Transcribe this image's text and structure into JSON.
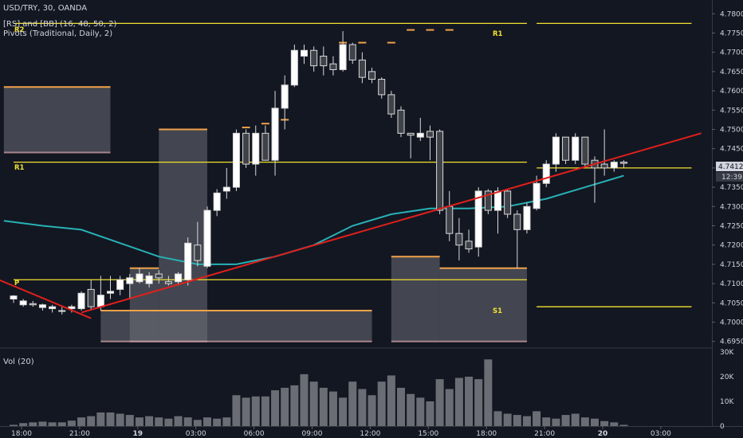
{
  "header": {
    "symbol_line": "USD/TRY, 30, OANDA",
    "indicator_1": "[RS] and [BB] (16, 48, 50, 2)",
    "indicator_2": "Pivots (Traditional, Daily, 2)"
  },
  "volume_panel": {
    "title": "Vol (20)"
  },
  "price_labels": {
    "last": "4.74126",
    "countdown": "12:39"
  },
  "pivot_labels": {
    "r2": "R2",
    "r1_top": "R1",
    "r1": "R1",
    "p": "P",
    "s1": "S1"
  },
  "colors": {
    "background": "#131722",
    "candle": "#d9d9d9",
    "pivot_line": "#f2e12e",
    "trendline": "#e0201c",
    "moving_average": "#27b1b5",
    "band_fill": "#6b6e76",
    "band_top": "#f0a24a",
    "band_bottom": "#c89aa0",
    "volume": "#6a6d73"
  },
  "chart_data": {
    "type": "candlestick",
    "symbol": "USD/TRY",
    "interval": "30",
    "source": "OANDA",
    "price_axis": {
      "ticks": [
        "4.78000",
        "4.77500",
        "4.77000",
        "4.76500",
        "4.76000",
        "4.75500",
        "4.75000",
        "4.74500",
        "4.74000",
        "4.73500",
        "4.73000",
        "4.72500",
        "4.72000",
        "4.71500",
        "4.71000",
        "4.70500",
        "4.70000",
        "4.69500"
      ],
      "range": [
        4.6935,
        4.7815
      ]
    },
    "time_axis": {
      "ticks": [
        {
          "label": "18:00",
          "bar": 0
        },
        {
          "label": "21:00",
          "bar": 6
        },
        {
          "label": "19",
          "bar": 12
        },
        {
          "label": "03:00",
          "bar": 18
        },
        {
          "label": "06:00",
          "bar": 24
        },
        {
          "label": "09:00",
          "bar": 30
        },
        {
          "label": "12:00",
          "bar": 36
        },
        {
          "label": "15:00",
          "bar": 42
        },
        {
          "label": "18:00",
          "bar": 48
        },
        {
          "label": "21:00",
          "bar": 54
        },
        {
          "label": "20",
          "bar": 60
        },
        {
          "label": "03:00",
          "bar": 66
        }
      ]
    },
    "candles": [
      {
        "o": 4.706,
        "h": 4.707,
        "l": 4.705,
        "c": 4.7068
      },
      {
        "o": 4.7045,
        "h": 4.706,
        "l": 4.704,
        "c": 4.7055
      },
      {
        "o": 4.7048,
        "h": 4.7055,
        "l": 4.704,
        "c": 4.7045
      },
      {
        "o": 4.7038,
        "h": 4.7048,
        "l": 4.703,
        "c": 4.7045
      },
      {
        "o": 4.7035,
        "h": 4.7045,
        "l": 4.7025,
        "c": 4.704
      },
      {
        "o": 4.703,
        "h": 4.704,
        "l": 4.702,
        "c": 4.703
      },
      {
        "o": 4.7035,
        "h": 4.7045,
        "l": 4.7025,
        "c": 4.704
      },
      {
        "o": 4.7035,
        "h": 4.708,
        "l": 4.703,
        "c": 4.7075
      },
      {
        "o": 4.7085,
        "h": 4.711,
        "l": 4.703,
        "c": 4.704
      },
      {
        "o": 4.704,
        "h": 4.712,
        "l": 4.703,
        "c": 4.707
      },
      {
        "o": 4.7075,
        "h": 4.712,
        "l": 4.706,
        "c": 4.708
      },
      {
        "o": 4.7085,
        "h": 4.712,
        "l": 4.707,
        "c": 4.711
      },
      {
        "o": 4.71,
        "h": 4.7125,
        "l": 4.706,
        "c": 4.7115
      },
      {
        "o": 4.7105,
        "h": 4.714,
        "l": 4.71,
        "c": 4.7125
      },
      {
        "o": 4.71,
        "h": 4.713,
        "l": 4.709,
        "c": 4.712
      },
      {
        "o": 4.7125,
        "h": 4.7135,
        "l": 4.71,
        "c": 4.7115
      },
      {
        "o": 4.7105,
        "h": 4.712,
        "l": 4.7095,
        "c": 4.71
      },
      {
        "o": 4.7105,
        "h": 4.713,
        "l": 4.7095,
        "c": 4.7125
      },
      {
        "o": 4.711,
        "h": 4.722,
        "l": 4.7095,
        "c": 4.7205
      },
      {
        "o": 4.72,
        "h": 4.726,
        "l": 4.7145,
        "c": 4.716
      },
      {
        "o": 4.7145,
        "h": 4.73,
        "l": 4.714,
        "c": 4.729
      },
      {
        "o": 4.729,
        "h": 4.7345,
        "l": 4.7275,
        "c": 4.7335
      },
      {
        "o": 4.734,
        "h": 4.74,
        "l": 4.732,
        "c": 4.735
      },
      {
        "o": 4.735,
        "h": 4.75,
        "l": 4.734,
        "c": 4.749
      },
      {
        "o": 4.749,
        "h": 4.75,
        "l": 4.74,
        "c": 4.741
      },
      {
        "o": 4.741,
        "h": 4.751,
        "l": 4.738,
        "c": 4.749
      },
      {
        "o": 4.749,
        "h": 4.751,
        "l": 4.742,
        "c": 4.742
      },
      {
        "o": 4.742,
        "h": 4.76,
        "l": 4.738,
        "c": 4.7555
      },
      {
        "o": 4.7555,
        "h": 4.764,
        "l": 4.75,
        "c": 4.7615
      },
      {
        "o": 4.7615,
        "h": 4.772,
        "l": 4.761,
        "c": 4.7705
      },
      {
        "o": 4.769,
        "h": 4.772,
        "l": 4.767,
        "c": 4.7705
      },
      {
        "o": 4.7705,
        "h": 4.7715,
        "l": 4.765,
        "c": 4.7665
      },
      {
        "o": 4.769,
        "h": 4.7715,
        "l": 4.764,
        "c": 4.7665
      },
      {
        "o": 4.767,
        "h": 4.769,
        "l": 4.764,
        "c": 4.7655
      },
      {
        "o": 4.7655,
        "h": 4.7755,
        "l": 4.765,
        "c": 4.772
      },
      {
        "o": 4.772,
        "h": 4.7725,
        "l": 4.767,
        "c": 4.768
      },
      {
        "o": 4.768,
        "h": 4.77,
        "l": 4.762,
        "c": 4.7635
      },
      {
        "o": 4.765,
        "h": 4.766,
        "l": 4.762,
        "c": 4.763
      },
      {
        "o": 4.763,
        "h": 4.7635,
        "l": 4.758,
        "c": 4.759
      },
      {
        "o": 4.759,
        "h": 4.76,
        "l": 4.753,
        "c": 4.754
      },
      {
        "o": 4.755,
        "h": 4.756,
        "l": 4.748,
        "c": 4.749
      },
      {
        "o": 4.749,
        "h": 4.749,
        "l": 4.7425,
        "c": 4.7485
      },
      {
        "o": 4.748,
        "h": 4.753,
        "l": 4.747,
        "c": 4.749
      },
      {
        "o": 4.7495,
        "h": 4.751,
        "l": 4.742,
        "c": 4.748
      },
      {
        "o": 4.7495,
        "h": 4.75,
        "l": 4.728,
        "c": 4.729
      },
      {
        "o": 4.73,
        "h": 4.734,
        "l": 4.721,
        "c": 4.723
      },
      {
        "o": 4.723,
        "h": 4.727,
        "l": 4.716,
        "c": 4.72
      },
      {
        "o": 4.721,
        "h": 4.724,
        "l": 4.718,
        "c": 4.719
      },
      {
        "o": 4.7195,
        "h": 4.735,
        "l": 4.717,
        "c": 4.734
      },
      {
        "o": 4.734,
        "h": 4.7345,
        "l": 4.728,
        "c": 4.729
      },
      {
        "o": 4.729,
        "h": 4.735,
        "l": 4.723,
        "c": 4.734
      },
      {
        "o": 4.734,
        "h": 4.7345,
        "l": 4.727,
        "c": 4.728
      },
      {
        "o": 4.728,
        "h": 4.729,
        "l": 4.714,
        "c": 4.724
      },
      {
        "o": 4.724,
        "h": 4.731,
        "l": 4.723,
        "c": 4.73
      },
      {
        "o": 4.7295,
        "h": 4.738,
        "l": 4.729,
        "c": 4.736
      },
      {
        "o": 4.736,
        "h": 4.742,
        "l": 4.735,
        "c": 4.741
      },
      {
        "o": 4.741,
        "h": 4.749,
        "l": 4.739,
        "c": 4.748
      },
      {
        "o": 4.748,
        "h": 4.748,
        "l": 4.741,
        "c": 4.742
      },
      {
        "o": 4.742,
        "h": 4.749,
        "l": 4.741,
        "c": 4.748
      },
      {
        "o": 4.748,
        "h": 4.748,
        "l": 4.74,
        "c": 4.741
      },
      {
        "o": 4.742,
        "h": 4.743,
        "l": 4.731,
        "c": 4.74
      },
      {
        "o": 4.741,
        "h": 4.75,
        "l": 4.738,
        "c": 4.74
      },
      {
        "o": 4.74,
        "h": 4.742,
        "l": 4.739,
        "c": 4.7415
      },
      {
        "o": 4.7415,
        "h": 4.742,
        "l": 4.74,
        "c": 4.7412
      }
    ],
    "pivots": [
      {
        "label": "R2",
        "price": 4.7775,
        "from_bar": 0,
        "to_bar": 53
      },
      {
        "label": "R1",
        "price": 4.7775,
        "from_bar": 54,
        "to_bar": 70
      },
      {
        "label": "R1",
        "price": 4.7415,
        "from_bar": 0,
        "to_bar": 53
      },
      {
        "label": "P",
        "price": 4.711,
        "from_bar": 0,
        "to_bar": 53
      },
      {
        "label": "S1",
        "price": 4.704,
        "from_bar": 54,
        "to_bar": 70
      }
    ],
    "resistance_line": {
      "price": 4.74,
      "from_bar": 54,
      "to_bar": 70
    },
    "trendlines": [
      {
        "from": {
          "bar": -2,
          "price": 4.7115
        },
        "to": {
          "bar": 8,
          "price": 4.701
        }
      },
      {
        "from": {
          "bar": 7,
          "price": 4.7025
        },
        "to": {
          "bar": 71,
          "price": 4.749
        }
      }
    ],
    "moving_average": [
      {
        "bar": -1,
        "price": 4.7263
      },
      {
        "bar": 3,
        "price": 4.725
      },
      {
        "bar": 7,
        "price": 4.724
      },
      {
        "bar": 11,
        "price": 4.7205
      },
      {
        "bar": 15,
        "price": 4.717
      },
      {
        "bar": 19,
        "price": 4.715
      },
      {
        "bar": 23,
        "price": 4.715
      },
      {
        "bar": 27,
        "price": 4.717
      },
      {
        "bar": 31,
        "price": 4.72
      },
      {
        "bar": 35,
        "price": 4.725
      },
      {
        "bar": 39,
        "price": 4.728
      },
      {
        "bar": 43,
        "price": 4.7295
      },
      {
        "bar": 47,
        "price": 4.7295
      },
      {
        "bar": 51,
        "price": 4.73
      },
      {
        "bar": 55,
        "price": 4.732
      },
      {
        "bar": 59,
        "price": 4.735
      },
      {
        "bar": 63,
        "price": 4.738
      }
    ],
    "bands": [
      {
        "top": 4.761,
        "bottom": 4.744,
        "from_bar": -1,
        "to_bar": 10
      },
      {
        "top": 4.714,
        "bottom": 4.695,
        "from_bar": 12,
        "to_bar": 15
      },
      {
        "top": 4.75,
        "bottom": 4.695,
        "from_bar": 15,
        "to_bar": 20
      },
      {
        "top": 4.703,
        "bottom": 4.695,
        "from_bar": 9,
        "to_bar": 37
      },
      {
        "top": 4.717,
        "bottom": 4.695,
        "from_bar": 39,
        "to_bar": 44
      },
      {
        "top": 4.714,
        "bottom": 4.695,
        "from_bar": 44,
        "to_bar": 53
      }
    ],
    "top_markers": [
      {
        "bar": 24,
        "price": 4.7505
      },
      {
        "bar": 26,
        "price": 4.7515
      },
      {
        "bar": 28,
        "price": 4.7525
      },
      {
        "bar": 34,
        "price": 4.7725
      },
      {
        "bar": 36,
        "price": 4.7725
      },
      {
        "bar": 39,
        "price": 4.7725
      },
      {
        "bar": 41,
        "price": 4.7758
      },
      {
        "bar": 43,
        "price": 4.7758
      },
      {
        "bar": 45,
        "price": 4.7758
      }
    ],
    "volume": {
      "axis_ticks": [
        "30K",
        "20K",
        "10K",
        "0"
      ],
      "range": [
        0,
        30000
      ],
      "values": [
        500,
        1200,
        1500,
        1800,
        1500,
        1500,
        2200,
        3500,
        4000,
        5500,
        5500,
        5000,
        4500,
        3500,
        4000,
        3500,
        3000,
        4000,
        3500,
        2500,
        3500,
        3000,
        3500,
        12500,
        11500,
        12000,
        12000,
        14500,
        15500,
        16500,
        21000,
        18000,
        15500,
        14000,
        11500,
        18000,
        15000,
        12500,
        18000,
        20500,
        15500,
        13000,
        11500,
        10000,
        19000,
        15000,
        19500,
        20000,
        19000,
        27000,
        6000,
        5000,
        4500,
        4000,
        6000,
        3500,
        3000,
        4500,
        5000,
        3500,
        3000,
        2000,
        1500,
        500
      ]
    }
  }
}
